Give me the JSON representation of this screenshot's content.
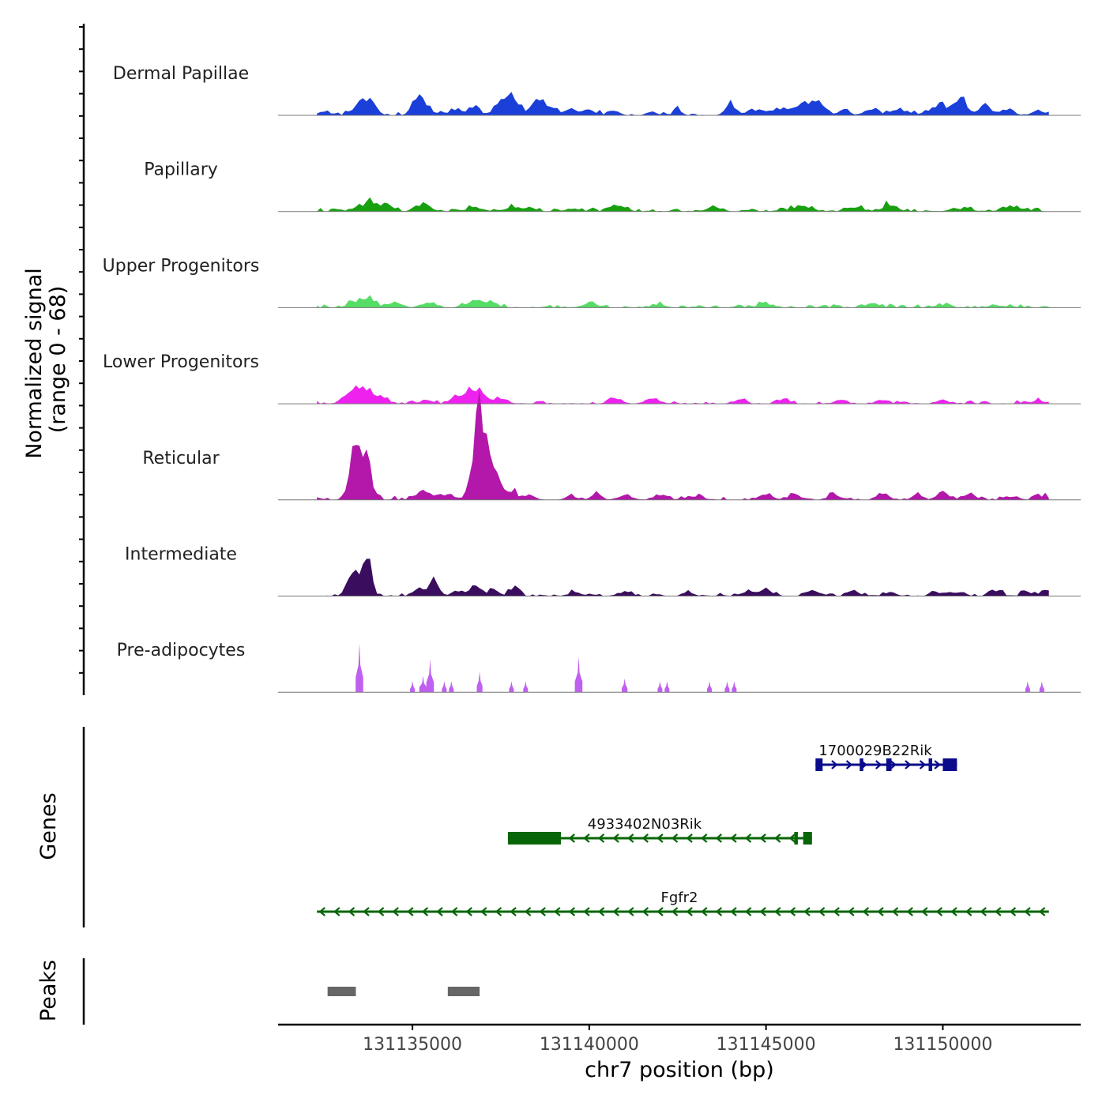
{
  "chart_data": {
    "type": "area",
    "title": "",
    "xlabel": "chr7 position (bp)",
    "ylabel_line1": "Normalized signal",
    "ylabel_line2": "(range 0 - 68)",
    "ylim": [
      0,
      68
    ],
    "xlim": [
      131131200,
      131153900
    ],
    "x_ticks": [
      131135000,
      131140000,
      131145000,
      131150000
    ],
    "x_tick_labels": [
      "131135000",
      "131140000",
      "131145000",
      "131150000"
    ],
    "signal_start": 131132300,
    "signal_end": 131153000,
    "signal_bin_bp": 100,
    "tracks": [
      {
        "name": "Dermal Papillae",
        "color": "#1b3fd9",
        "peaks": [
          [
            131132500,
            3,
            150
          ],
          [
            131133500,
            7,
            200
          ],
          [
            131133800,
            8,
            180
          ],
          [
            131135300,
            10,
            200
          ],
          [
            131135100,
            5,
            150
          ],
          [
            131136200,
            4,
            150
          ],
          [
            131136700,
            7,
            150
          ],
          [
            131137500,
            8,
            200
          ],
          [
            131137900,
            11,
            180
          ],
          [
            131138600,
            9,
            200
          ],
          [
            131139000,
            4,
            150
          ],
          [
            131139500,
            4,
            150
          ],
          [
            131140000,
            5,
            150
          ],
          [
            131140700,
            3,
            150
          ],
          [
            131141800,
            3,
            120
          ],
          [
            131142500,
            4,
            120
          ],
          [
            131144000,
            7,
            150
          ],
          [
            131144600,
            4,
            150
          ],
          [
            131145300,
            4,
            200
          ],
          [
            131146000,
            6,
            300
          ],
          [
            131146500,
            7,
            200
          ],
          [
            131147200,
            4,
            150
          ],
          [
            131148000,
            5,
            200
          ],
          [
            131148800,
            4,
            200
          ],
          [
            131149900,
            6,
            300
          ],
          [
            131150500,
            10,
            200
          ],
          [
            131151200,
            7,
            150
          ],
          [
            131151800,
            4,
            200
          ],
          [
            131152700,
            4,
            150
          ]
        ],
        "noise": 1.6
      },
      {
        "name": "Papillary",
        "color": "#18a010",
        "peaks": [
          [
            131133800,
            6,
            300
          ],
          [
            131134300,
            4,
            150
          ],
          [
            131135300,
            5,
            200
          ],
          [
            131136800,
            3,
            200
          ],
          [
            131138000,
            3,
            300
          ],
          [
            131139500,
            2,
            200
          ],
          [
            131140800,
            4,
            200
          ],
          [
            131143500,
            3,
            200
          ],
          [
            131146000,
            3,
            300
          ],
          [
            131147500,
            3,
            200
          ],
          [
            131148500,
            5,
            200
          ],
          [
            131150500,
            2,
            300
          ],
          [
            131152000,
            3,
            300
          ]
        ],
        "noise": 1.4
      },
      {
        "name": "Upper Progenitors",
        "color": "#55dd66",
        "peaks": [
          [
            131133400,
            4,
            200
          ],
          [
            131133800,
            5,
            150
          ],
          [
            131134500,
            4,
            200
          ],
          [
            131135500,
            3,
            200
          ],
          [
            131136800,
            6,
            200
          ],
          [
            131137300,
            3,
            150
          ],
          [
            131140000,
            3,
            200
          ],
          [
            131142000,
            2,
            200
          ],
          [
            131145000,
            3,
            200
          ],
          [
            131148000,
            3,
            200
          ],
          [
            131150000,
            2,
            200
          ],
          [
            131151500,
            2,
            200
          ]
        ],
        "noise": 1.4
      },
      {
        "name": "Lower Progenitors",
        "color": "#ee22ee",
        "peaks": [
          [
            131133600,
            10,
            300
          ],
          [
            131133300,
            4,
            200
          ],
          [
            131134200,
            3,
            150
          ],
          [
            131135400,
            3,
            150
          ],
          [
            131136200,
            3,
            150
          ],
          [
            131136800,
            10,
            300
          ],
          [
            131137600,
            3,
            150
          ],
          [
            131140800,
            4,
            150
          ],
          [
            131141800,
            3,
            200
          ],
          [
            131144300,
            3,
            150
          ],
          [
            131145500,
            3,
            150
          ],
          [
            131147100,
            3,
            150
          ],
          [
            131148300,
            3,
            150
          ],
          [
            131150000,
            3,
            150
          ],
          [
            131152700,
            3,
            150
          ]
        ],
        "noise": 1.3
      },
      {
        "name": "Reticular",
        "color": "#b318aa",
        "peaks": [
          [
            131133400,
            38,
            170
          ],
          [
            131133700,
            26,
            150
          ],
          [
            131135300,
            5,
            200
          ],
          [
            131136000,
            4,
            200
          ],
          [
            131136900,
            64,
            180
          ],
          [
            131137300,
            22,
            170
          ],
          [
            131137800,
            7,
            150
          ],
          [
            131138300,
            3,
            150
          ],
          [
            131139500,
            3,
            150
          ],
          [
            131140200,
            4,
            150
          ],
          [
            131141000,
            3,
            200
          ],
          [
            131142000,
            3,
            200
          ],
          [
            131143000,
            3,
            200
          ],
          [
            131145000,
            4,
            200
          ],
          [
            131145800,
            5,
            150
          ],
          [
            131146900,
            4,
            150
          ],
          [
            131148300,
            5,
            150
          ],
          [
            131149300,
            4,
            150
          ],
          [
            131150000,
            6,
            150
          ],
          [
            131150800,
            4,
            150
          ],
          [
            131152000,
            3,
            150
          ],
          [
            131152800,
            3,
            150
          ]
        ],
        "noise": 1.5
      },
      {
        "name": "Intermediate",
        "color": "#3a0d5e",
        "peaks": [
          [
            131133300,
            18,
            150
          ],
          [
            131133700,
            30,
            130
          ],
          [
            131135200,
            6,
            150
          ],
          [
            131135600,
            10,
            150
          ],
          [
            131136300,
            4,
            150
          ],
          [
            131136800,
            7,
            150
          ],
          [
            131137300,
            5,
            150
          ],
          [
            131137900,
            8,
            120
          ],
          [
            131139600,
            3,
            150
          ],
          [
            131141000,
            3,
            150
          ],
          [
            131142800,
            3,
            150
          ],
          [
            131144500,
            4,
            150
          ],
          [
            131145000,
            6,
            150
          ],
          [
            131146300,
            4,
            150
          ],
          [
            131147500,
            3,
            150
          ],
          [
            131148500,
            3,
            150
          ],
          [
            131149800,
            3,
            150
          ],
          [
            131150500,
            3,
            150
          ],
          [
            131151500,
            4,
            150
          ],
          [
            131152400,
            3,
            150
          ],
          [
            131152900,
            4,
            150
          ]
        ],
        "noise": 1.3
      },
      {
        "name": "Pre-adipocytes",
        "color": "#c060f0",
        "spikes": [
          [
            131133500,
            36,
            4
          ],
          [
            131135000,
            8,
            2
          ],
          [
            131135300,
            12,
            4
          ],
          [
            131135500,
            24,
            4
          ],
          [
            131135900,
            8,
            2
          ],
          [
            131136100,
            8,
            2
          ],
          [
            131136900,
            15,
            3
          ],
          [
            131137800,
            8,
            2
          ],
          [
            131138200,
            8,
            2
          ],
          [
            131139700,
            26,
            4
          ],
          [
            131141000,
            10,
            3
          ],
          [
            131142000,
            8,
            2
          ],
          [
            131142200,
            8,
            2
          ],
          [
            131143400,
            8,
            2
          ],
          [
            131143900,
            8,
            2
          ],
          [
            131144100,
            8,
            2
          ],
          [
            131152400,
            8,
            2
          ],
          [
            131152800,
            8,
            2
          ]
        ]
      }
    ],
    "genes_label": "Genes",
    "genes": [
      {
        "name": "1700029B22Rik",
        "strand": "+",
        "color": "#0b0b8c",
        "start": 131146400,
        "end": 131150400,
        "exons": [
          [
            131146400,
            131146600
          ],
          [
            131147650,
            131147750
          ],
          [
            131148400,
            131148550
          ],
          [
            131149600,
            131149700
          ],
          [
            131150000,
            131150400
          ]
        ]
      },
      {
        "name": "4933402N03Rik",
        "strand": "-",
        "color": "#086608",
        "start": 131137700,
        "end": 131146300,
        "exons": [
          [
            131137700,
            131139200
          ],
          [
            131145800,
            131145900
          ],
          [
            131146050,
            131146300
          ]
        ]
      },
      {
        "name": "Fgfr2",
        "strand": "-",
        "color": "#086608",
        "start": 131132300,
        "end": 131153000,
        "exons": []
      }
    ],
    "peaks_label": "Peaks",
    "peak_regions": [
      [
        131132600,
        131133400
      ],
      [
        131136000,
        131136900
      ]
    ],
    "peak_color": "#666666"
  }
}
